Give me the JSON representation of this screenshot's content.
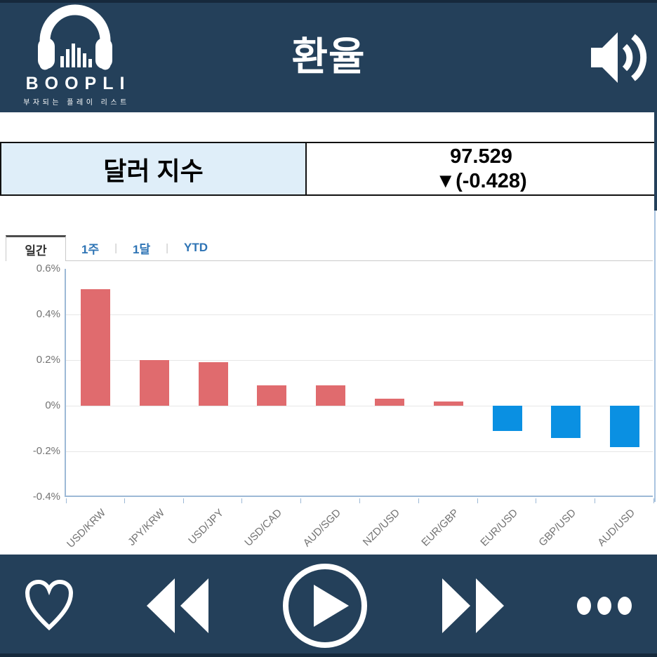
{
  "header": {
    "app_name": "BOOPLI",
    "app_tagline": "부자되는 플레이 리스트",
    "title": "환율"
  },
  "quote": {
    "label": "달러 지수",
    "value": "97.529",
    "change": "▼(-0.428)"
  },
  "tabs": [
    {
      "label": "일간",
      "active": true
    },
    {
      "label": "1주",
      "active": false
    },
    {
      "label": "1달",
      "active": false
    },
    {
      "label": "YTD",
      "active": false
    }
  ],
  "chart_data": {
    "type": "bar",
    "categories": [
      "USD/KRW",
      "JPY/KRW",
      "USD/JPY",
      "USD/CAD",
      "AUD/SGD",
      "NZD/USD",
      "EUR/GBP",
      "EUR/USD",
      "GBP/USD",
      "AUD/USD"
    ],
    "values": [
      0.51,
      0.2,
      0.19,
      0.09,
      0.09,
      0.03,
      0.02,
      -0.11,
      -0.14,
      -0.18
    ],
    "title": "",
    "xlabel": "",
    "ylabel": "",
    "ylim": [
      -0.4,
      0.6
    ],
    "yticks": [
      0.6,
      0.4,
      0.2,
      0,
      -0.2,
      -0.4
    ],
    "ytick_labels": [
      "0.6%",
      "0.4%",
      "0.2%",
      "0%",
      "-0.2%",
      "-0.4%"
    ],
    "grid": true,
    "legend": false,
    "up_color": "#e06b6e",
    "down_color": "#0a90e2"
  },
  "colors": {
    "navy": "#24405a",
    "navy_dark": "#16293c",
    "cell_blue": "#dfeef9",
    "tab_link_blue": "#2e74b5",
    "axis_blue": "#9db9d6",
    "grid_gray": "#e6e6e6"
  }
}
